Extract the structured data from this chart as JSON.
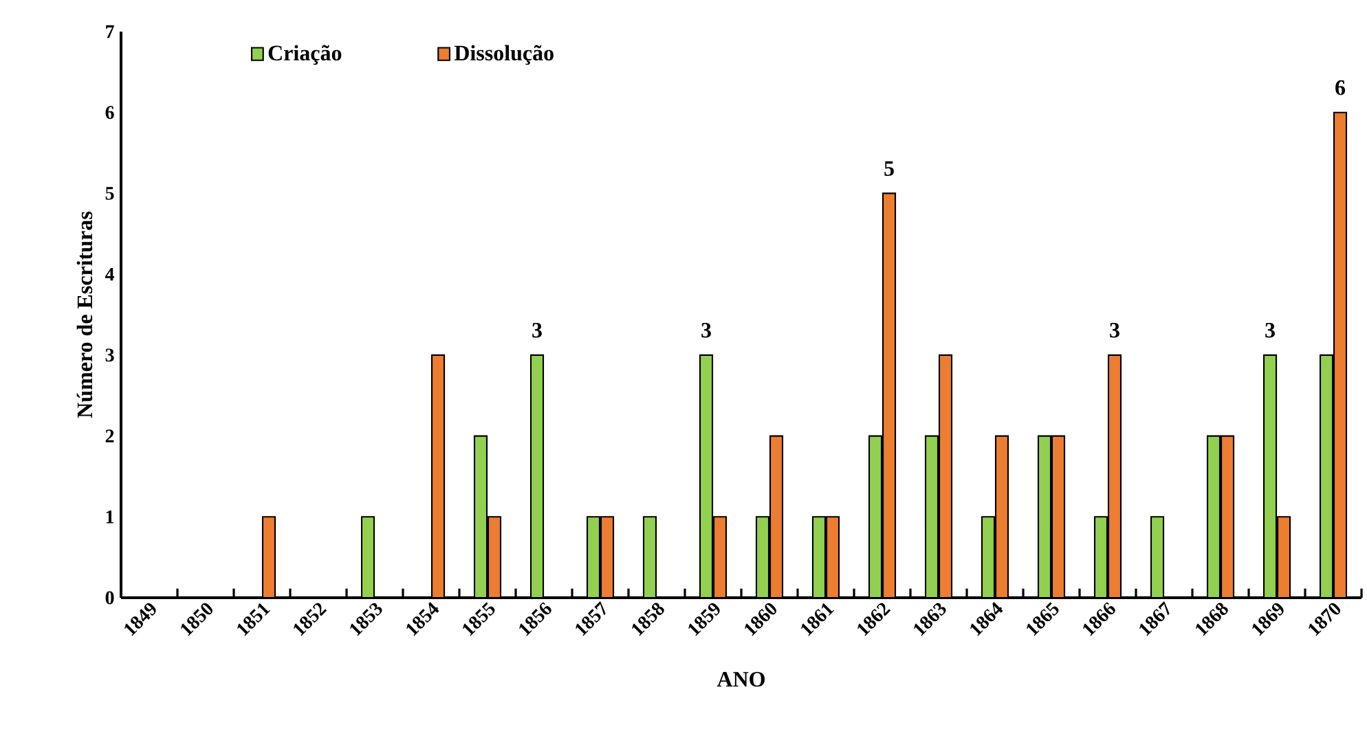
{
  "chart_data": {
    "type": "bar",
    "xlabel": "ANO",
    "ylabel": "Número de Escrituras",
    "categories": [
      "1849",
      "1850",
      "1851",
      "1852",
      "1853",
      "1854",
      "1855",
      "1856",
      "1857",
      "1858",
      "1859",
      "1860",
      "1861",
      "1862",
      "1863",
      "1864",
      "1865",
      "1866",
      "1867",
      "1868",
      "1869",
      "1870"
    ],
    "series": [
      {
        "name": "Criação",
        "color": "#92d050",
        "values": [
          null,
          null,
          null,
          null,
          1,
          null,
          2,
          3,
          1,
          1,
          3,
          1,
          1,
          2,
          2,
          1,
          2,
          1,
          1,
          2,
          3,
          3
        ],
        "value_labels": [
          null,
          null,
          null,
          null,
          null,
          null,
          null,
          "3",
          null,
          null,
          "3",
          null,
          null,
          null,
          null,
          null,
          null,
          null,
          null,
          null,
          "3",
          null
        ]
      },
      {
        "name": "Dissolução",
        "color": "#ed7d31",
        "values": [
          null,
          null,
          1,
          null,
          null,
          3,
          1,
          null,
          1,
          null,
          1,
          2,
          1,
          5,
          3,
          2,
          2,
          3,
          null,
          2,
          1,
          6
        ],
        "value_labels": [
          null,
          null,
          null,
          null,
          null,
          null,
          null,
          null,
          null,
          null,
          null,
          null,
          null,
          "5",
          null,
          null,
          null,
          "3",
          null,
          null,
          null,
          "6"
        ]
      }
    ],
    "ylim": [
      0,
      7
    ],
    "yticks": [
      0,
      1,
      2,
      3,
      4,
      5,
      6,
      7
    ],
    "grid": false,
    "legend": "top left"
  }
}
